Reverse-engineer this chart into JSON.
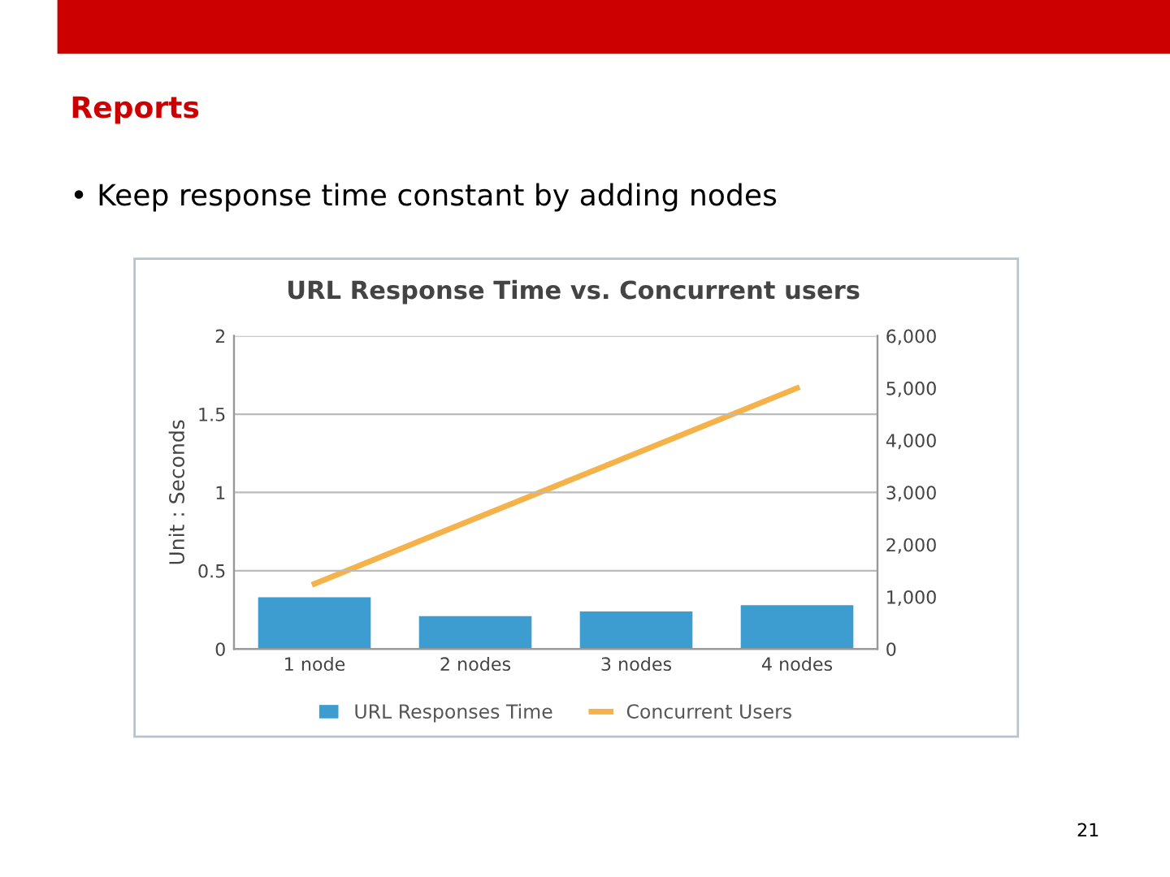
{
  "chart_data": {
    "type": "bar",
    "title": "Reports",
    "subtitle": "• Keep response time constant by adding nodes",
    "annotations": [
      "URL Response Time vs. Concurrent users",
      "21"
    ],
    "categories": [
      "1 node",
      "2 nodes",
      "3 nodes",
      "4 nodes"
    ],
    "ylabel": "Unit : Seconds",
    "series": [
      {
        "name": "URL Responses Time",
        "color": "#3d9cd0",
        "values": [
          0.33,
          0.21,
          0.24,
          0.28
        ]
      },
      {
        "name": "Concurrent Users",
        "type": "line",
        "axis": "y2",
        "color": "#f5b24a",
        "values": [
          1250,
          2500,
          3750,
          5000
        ]
      }
    ],
    "ylim": [
      0,
      2
    ],
    "yticks": [
      0,
      0.5,
      1,
      1.5,
      2
    ],
    "y2lim": [
      0,
      6000
    ],
    "y2ticks": [
      0,
      {
        "value": 1000,
        "label": "1,000"
      },
      {
        "value": 2000,
        "label": "2,000"
      },
      {
        "value": 3000,
        "label": "3,000"
      },
      {
        "value": 4000,
        "label": "4,000"
      },
      {
        "value": 5000,
        "label": "5,000"
      },
      {
        "value": 6000,
        "label": "6,000"
      }
    ],
    "grid": "y",
    "legend": "bottom",
    "marker": "none",
    "line_style": "solid"
  }
}
